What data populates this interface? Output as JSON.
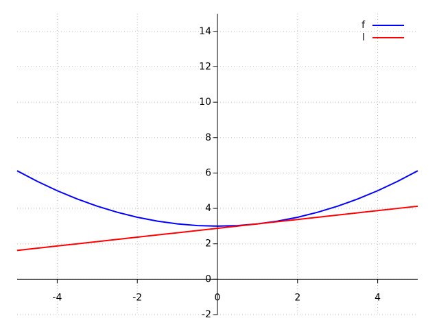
{
  "chart_data": {
    "type": "line",
    "x": [
      -5,
      -4.5,
      -4,
      -3.5,
      -3,
      -2.5,
      -2,
      -1.5,
      -1,
      -0.5,
      0,
      0.5,
      1,
      1.5,
      2,
      2.5,
      3,
      3.5,
      4,
      4.5,
      5
    ],
    "series": [
      {
        "name": "f",
        "color": "#0000ff",
        "values": [
          6.125,
          5.53125,
          5,
          4.53125,
          4.125,
          3.78125,
          3.5,
          3.28125,
          3.125,
          3.03125,
          3,
          3.03125,
          3.125,
          3.28125,
          3.5,
          3.78125,
          4.125,
          4.53125,
          5,
          5.53125,
          6.125
        ]
      },
      {
        "name": "l",
        "color": "#ff0000",
        "values": [
          1.625,
          1.75,
          1.875,
          2,
          2.125,
          2.25,
          2.375,
          2.5,
          2.625,
          2.75,
          2.875,
          3,
          3.125,
          3.25,
          3.375,
          3.5,
          3.625,
          3.75,
          3.875,
          4,
          4.125
        ]
      }
    ],
    "xlim": [
      -5,
      5
    ],
    "ylim": [
      -2,
      15
    ],
    "xticks": [
      -4,
      -2,
      0,
      2,
      4
    ],
    "yticks": [
      -2,
      0,
      2,
      4,
      6,
      8,
      10,
      12,
      14
    ],
    "grid": true,
    "legend": "top-right"
  }
}
